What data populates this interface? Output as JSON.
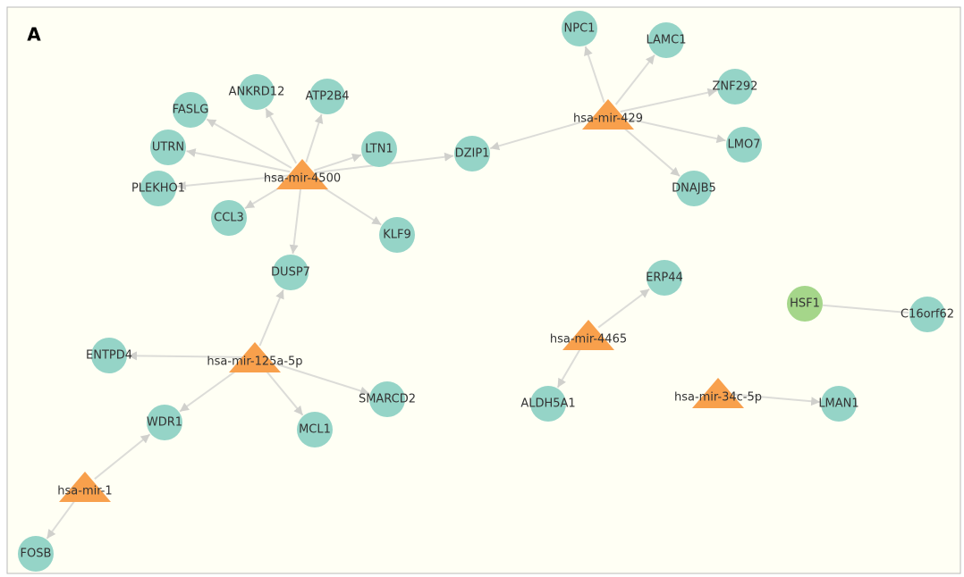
{
  "panel_label": "A",
  "nodes": [
    {
      "label": "hsa-mir-4500"
    },
    {
      "label": "hsa-mir-429"
    },
    {
      "label": "hsa-mir-125a-5p"
    },
    {
      "label": "hsa-mir-1"
    },
    {
      "label": "hsa-mir-4465"
    },
    {
      "label": "hsa-mir-34c-5p"
    },
    {
      "label": "ANKRD12"
    },
    {
      "label": "ATP2B4"
    },
    {
      "label": "FASLG"
    },
    {
      "label": "UTRN"
    },
    {
      "label": "LTN1"
    },
    {
      "label": "PLEKHO1"
    },
    {
      "label": "CCL3"
    },
    {
      "label": "KLF9"
    },
    {
      "label": "DUSP7"
    },
    {
      "label": "DZIP1"
    },
    {
      "label": "NPC1"
    },
    {
      "label": "LAMC1"
    },
    {
      "label": "ZNF292"
    },
    {
      "label": "LMO7"
    },
    {
      "label": "DNAJB5"
    },
    {
      "label": "ERP44"
    },
    {
      "label": "ALDH5A1"
    },
    {
      "label": "LMAN1"
    },
    {
      "label": "HSF1"
    },
    {
      "label": "C16orf62"
    },
    {
      "label": "ENTPD4"
    },
    {
      "label": "SMARCD2"
    },
    {
      "label": "MCL1"
    },
    {
      "label": "WDR1"
    },
    {
      "label": "FOSB"
    }
  ]
}
